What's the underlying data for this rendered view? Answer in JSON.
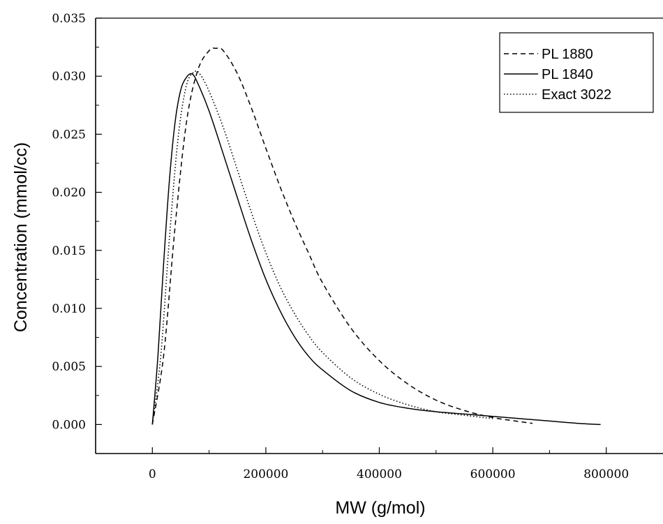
{
  "chart_data": {
    "type": "line",
    "xlabel": "MW (g/mol)",
    "ylabel": "Concentration (mmol/cc)",
    "xlim": [
      -100000,
      900000
    ],
    "ylim": [
      -0.0025,
      0.035
    ],
    "xticks": [
      0,
      200000,
      400000,
      600000,
      800000
    ],
    "xtick_labels": [
      "0",
      "200000",
      "400000",
      "600000",
      "800000"
    ],
    "yticks": [
      0.0,
      0.005,
      0.01,
      0.015,
      0.02,
      0.025,
      0.03,
      0.035
    ],
    "ytick_labels": [
      "0.000",
      "0.005",
      "0.010",
      "0.015",
      "0.020",
      "0.025",
      "0.030",
      "0.035"
    ],
    "grid": false,
    "legend_position": "top-right",
    "series": [
      {
        "name": "PL 1880",
        "style": "dashed",
        "color": "#000000",
        "x": [
          0,
          20000,
          40000,
          60000,
          80000,
          100000,
          112000,
          125000,
          150000,
          175000,
          200000,
          225000,
          250000,
          275000,
          300000,
          350000,
          400000,
          450000,
          500000,
          550000,
          600000,
          640000,
          670000
        ],
        "y": [
          0.0,
          0.006,
          0.017,
          0.026,
          0.0305,
          0.0322,
          0.0324,
          0.0322,
          0.0302,
          0.0272,
          0.0238,
          0.0205,
          0.0175,
          0.0148,
          0.0122,
          0.0083,
          0.0055,
          0.0035,
          0.0021,
          0.0012,
          0.0006,
          0.0003,
          0.0001
        ]
      },
      {
        "name": "PL 1840",
        "style": "solid",
        "color": "#000000",
        "x": [
          0,
          10000,
          20000,
          30000,
          40000,
          50000,
          60000,
          70000,
          80000,
          100000,
          125000,
          150000,
          175000,
          200000,
          225000,
          250000,
          275000,
          300000,
          350000,
          400000,
          450000,
          500000,
          550000,
          600000,
          650000,
          700000,
          750000,
          790000
        ],
        "y": [
          0.0,
          0.006,
          0.014,
          0.021,
          0.026,
          0.0288,
          0.0299,
          0.0302,
          0.0294,
          0.027,
          0.0233,
          0.0195,
          0.0158,
          0.0125,
          0.0098,
          0.0076,
          0.0059,
          0.0047,
          0.0029,
          0.0019,
          0.0014,
          0.0011,
          0.0009,
          0.0007,
          0.0005,
          0.0003,
          0.0001,
          0.0
        ]
      },
      {
        "name": "Exact 3022",
        "style": "dotted",
        "color": "#000000",
        "x": [
          0,
          15000,
          30000,
          45000,
          60000,
          75000,
          85000,
          100000,
          125000,
          150000,
          175000,
          200000,
          225000,
          250000,
          275000,
          300000,
          350000,
          400000,
          450000,
          500000,
          550000,
          600000
        ],
        "y": [
          0.0,
          0.006,
          0.016,
          0.0245,
          0.0292,
          0.0304,
          0.0301,
          0.0287,
          0.0256,
          0.0219,
          0.0182,
          0.0148,
          0.0119,
          0.0096,
          0.0077,
          0.0062,
          0.004,
          0.0026,
          0.0017,
          0.0011,
          0.0008,
          0.0005
        ]
      }
    ]
  }
}
